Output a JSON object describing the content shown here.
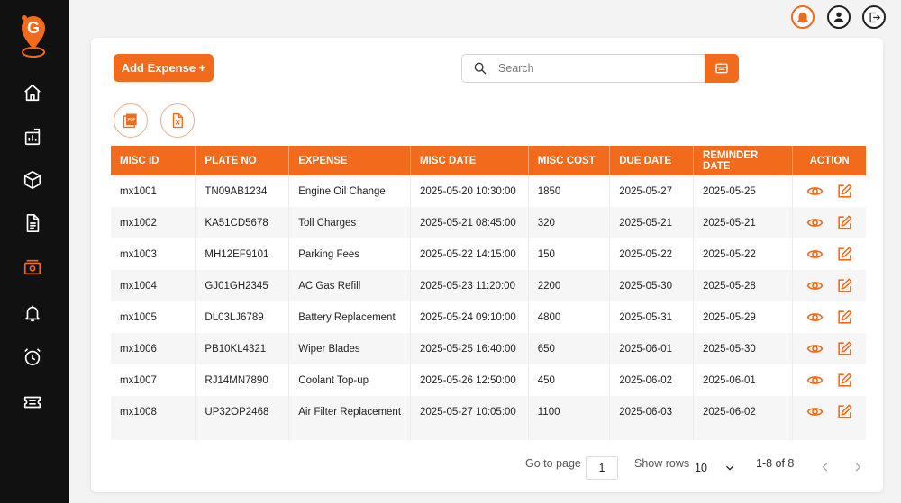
{
  "sidebar": {
    "items": [
      {
        "icon": "home-icon"
      },
      {
        "icon": "chart-icon"
      },
      {
        "icon": "box-icon"
      },
      {
        "icon": "document-icon"
      },
      {
        "icon": "cash-icon",
        "active": true
      },
      {
        "icon": "bell-icon"
      },
      {
        "icon": "alarm-icon"
      },
      {
        "icon": "ticket-icon"
      }
    ]
  },
  "toolbar": {
    "add_label": "Add Expense +",
    "search_placeholder": "Search"
  },
  "table": {
    "headers": [
      "MISC ID",
      "PLATE NO",
      "EXPENSE",
      "MISC DATE",
      "MISC COST",
      "DUE DATE",
      "REMINDER DATE",
      "ACTION"
    ],
    "rows": [
      [
        "mx1001",
        "TN09AB1234",
        "Engine Oil Change",
        "2025-05-20 10:30:00",
        "1850",
        "2025-05-27",
        "2025-05-25"
      ],
      [
        "mx1002",
        "KA51CD5678",
        "Toll Charges",
        "2025-05-21 08:45:00",
        "320",
        "2025-05-21",
        "2025-05-21"
      ],
      [
        "mx1003",
        "MH12EF9101",
        "Parking Fees",
        "2025-05-22 14:15:00",
        "150",
        "2025-05-22",
        "2025-05-22"
      ],
      [
        "mx1004",
        "GJ01GH2345",
        "AC Gas Refill",
        "2025-05-23 11:20:00",
        "2200",
        "2025-05-30",
        "2025-05-28"
      ],
      [
        "mx1005",
        "DL03LJ6789",
        "Battery Replacement",
        "2025-05-24 09:10:00",
        "4800",
        "2025-05-31",
        "2025-05-29"
      ],
      [
        "mx1006",
        "PB10KL4321",
        "Wiper Blades",
        "2025-05-25 16:40:00",
        "650",
        "2025-06-01",
        "2025-05-30"
      ],
      [
        "mx1007",
        "RJ14MN7890",
        "Coolant Top-up",
        "2025-05-26 12:50:00",
        "450",
        "2025-06-02",
        "2025-06-01"
      ],
      [
        "mx1008",
        "UP32OP2468",
        "Air Filter Replacement",
        "2025-05-27 10:05:00",
        "1100",
        "2025-06-03",
        "2025-06-02"
      ]
    ]
  },
  "pagination": {
    "go_to_label": "Go to page",
    "page_value": "1",
    "show_rows_label": "Show rows",
    "rows_value": "10",
    "range_text": "1-8 of 8"
  },
  "colors": {
    "accent": "#f26a1b",
    "sidebar_bg": "#111111"
  }
}
